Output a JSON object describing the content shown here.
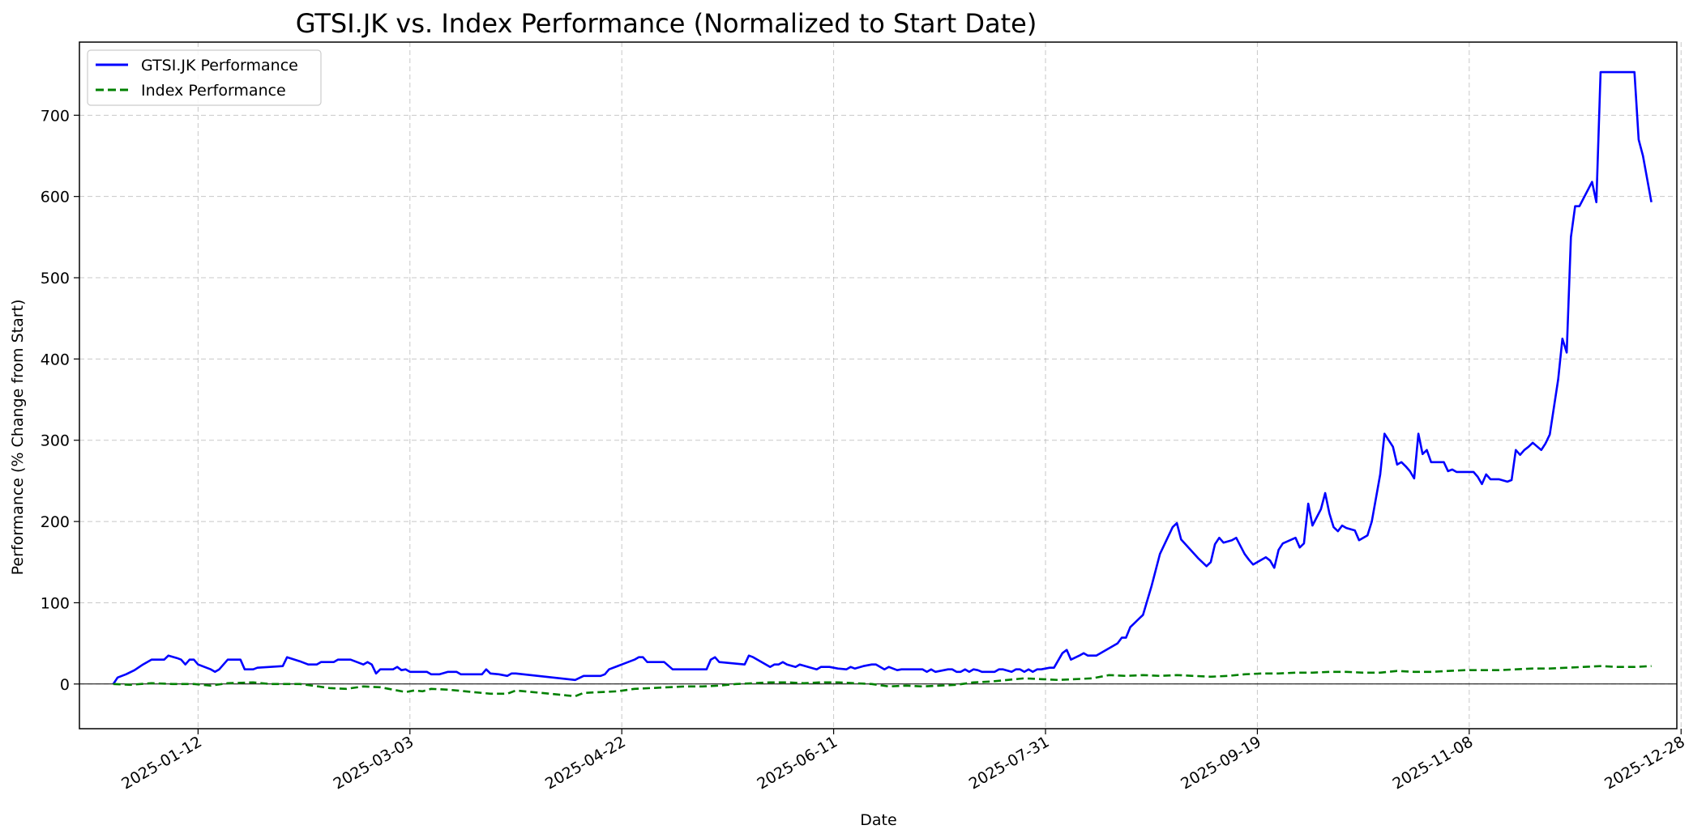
{
  "chart_data": {
    "type": "line",
    "title": "GTSI.JK vs. Index Performance (Normalized to Start Date)",
    "xlabel": "Date",
    "ylabel": "Performance (% Change from Start)",
    "xlim_days": [
      -17,
      360
    ],
    "ylim": [
      -55,
      790
    ],
    "x_ticks": [
      {
        "day": 11,
        "label": "2025-01-12"
      },
      {
        "day": 61,
        "label": "2025-03-03"
      },
      {
        "day": 111,
        "label": "2025-04-22"
      },
      {
        "day": 161,
        "label": "2025-06-11"
      },
      {
        "day": 211,
        "label": "2025-07-31"
      },
      {
        "day": 261,
        "label": "2025-09-19"
      },
      {
        "day": 311,
        "label": "2025-11-08"
      },
      {
        "day": 361,
        "label": "2025-12-28"
      }
    ],
    "y_ticks": [
      0,
      100,
      200,
      300,
      400,
      500,
      600,
      700
    ],
    "grid": true,
    "zero_line": true,
    "legend_position": "top-left",
    "series": [
      {
        "name": "GTSI.JK Performance",
        "color": "#0000ff",
        "style": "solid",
        "points": [
          [
            -9,
            0
          ],
          [
            -8,
            8
          ],
          [
            -6,
            12
          ],
          [
            -4,
            17
          ],
          [
            -2,
            24
          ],
          [
            0,
            30
          ],
          [
            3,
            30
          ],
          [
            4,
            35
          ],
          [
            6,
            32
          ],
          [
            7,
            30
          ],
          [
            8,
            24
          ],
          [
            9,
            30
          ],
          [
            10,
            30
          ],
          [
            11,
            24
          ],
          [
            13,
            20
          ],
          [
            14,
            18
          ],
          [
            15,
            15
          ],
          [
            16,
            18
          ],
          [
            18,
            30
          ],
          [
            21,
            30
          ],
          [
            22,
            18
          ],
          [
            24,
            18
          ],
          [
            25,
            20
          ],
          [
            31,
            22
          ],
          [
            32,
            33
          ],
          [
            35,
            28
          ],
          [
            37,
            24
          ],
          [
            39,
            24
          ],
          [
            40,
            27
          ],
          [
            43,
            27
          ],
          [
            44,
            30
          ],
          [
            47,
            30
          ],
          [
            50,
            24
          ],
          [
            51,
            27
          ],
          [
            52,
            24
          ],
          [
            53,
            13
          ],
          [
            54,
            18
          ],
          [
            57,
            18
          ],
          [
            58,
            21
          ],
          [
            59,
            17
          ],
          [
            60,
            18
          ],
          [
            61,
            15
          ],
          [
            64,
            15
          ],
          [
            65,
            15
          ],
          [
            66,
            12
          ],
          [
            68,
            12
          ],
          [
            70,
            15
          ],
          [
            72,
            15
          ],
          [
            73,
            12
          ],
          [
            78,
            12
          ],
          [
            79,
            18
          ],
          [
            80,
            13
          ],
          [
            82,
            12
          ],
          [
            84,
            10
          ],
          [
            85,
            13
          ],
          [
            86,
            13
          ],
          [
            100,
            5
          ],
          [
            102,
            10
          ],
          [
            106,
            10
          ],
          [
            107,
            12
          ],
          [
            108,
            18
          ],
          [
            111,
            24
          ],
          [
            114,
            30
          ],
          [
            115,
            33
          ],
          [
            116,
            33
          ],
          [
            117,
            27
          ],
          [
            121,
            27
          ],
          [
            123,
            18
          ],
          [
            131,
            18
          ],
          [
            132,
            30
          ],
          [
            133,
            33
          ],
          [
            134,
            27
          ],
          [
            140,
            24
          ],
          [
            141,
            35
          ],
          [
            142,
            33
          ],
          [
            145,
            24
          ],
          [
            146,
            21
          ],
          [
            147,
            24
          ],
          [
            148,
            24
          ],
          [
            149,
            27
          ],
          [
            150,
            24
          ],
          [
            152,
            21
          ],
          [
            153,
            24
          ],
          [
            155,
            21
          ],
          [
            157,
            18
          ],
          [
            158,
            21
          ],
          [
            160,
            21
          ],
          [
            162,
            19
          ],
          [
            164,
            18
          ],
          [
            165,
            21
          ],
          [
            166,
            19
          ],
          [
            168,
            22
          ],
          [
            170,
            24
          ],
          [
            171,
            24
          ],
          [
            173,
            18
          ],
          [
            174,
            21
          ],
          [
            175,
            19
          ],
          [
            176,
            17
          ],
          [
            177,
            18
          ],
          [
            181,
            18
          ],
          [
            182,
            18
          ],
          [
            183,
            15
          ],
          [
            184,
            18
          ],
          [
            185,
            15
          ],
          [
            188,
            18
          ],
          [
            189,
            18
          ],
          [
            190,
            15
          ],
          [
            191,
            15
          ],
          [
            192,
            18
          ],
          [
            193,
            15
          ],
          [
            194,
            18
          ],
          [
            195,
            17
          ],
          [
            196,
            15
          ],
          [
            199,
            15
          ],
          [
            200,
            18
          ],
          [
            201,
            18
          ],
          [
            203,
            15
          ],
          [
            204,
            18
          ],
          [
            205,
            18
          ],
          [
            206,
            15
          ],
          [
            207,
            18
          ],
          [
            208,
            15
          ],
          [
            209,
            18
          ],
          [
            210,
            18
          ],
          [
            212,
            20
          ],
          [
            213,
            20
          ],
          [
            215,
            38
          ],
          [
            216,
            42
          ],
          [
            217,
            30
          ],
          [
            219,
            35
          ],
          [
            220,
            38
          ],
          [
            221,
            35
          ],
          [
            223,
            35
          ],
          [
            228,
            50
          ],
          [
            229,
            57
          ],
          [
            230,
            57
          ],
          [
            231,
            70
          ],
          [
            233,
            80
          ],
          [
            234,
            85
          ],
          [
            236,
            120
          ],
          [
            238,
            160
          ],
          [
            241,
            193
          ],
          [
            242,
            198
          ],
          [
            243,
            178
          ],
          [
            247,
            155
          ],
          [
            249,
            145
          ],
          [
            250,
            150
          ],
          [
            251,
            172
          ],
          [
            252,
            180
          ],
          [
            253,
            174
          ],
          [
            255,
            177
          ],
          [
            256,
            180
          ],
          [
            258,
            160
          ],
          [
            259,
            153
          ],
          [
            260,
            147
          ],
          [
            263,
            156
          ],
          [
            264,
            152
          ],
          [
            265,
            143
          ],
          [
            266,
            165
          ],
          [
            267,
            173
          ],
          [
            270,
            180
          ],
          [
            271,
            168
          ],
          [
            272,
            173
          ],
          [
            273,
            222
          ],
          [
            274,
            195
          ],
          [
            276,
            215
          ],
          [
            277,
            235
          ],
          [
            278,
            210
          ],
          [
            279,
            193
          ],
          [
            280,
            188
          ],
          [
            281,
            195
          ],
          [
            282,
            192
          ],
          [
            284,
            189
          ],
          [
            285,
            177
          ],
          [
            287,
            183
          ],
          [
            288,
            200
          ],
          [
            290,
            258
          ],
          [
            291,
            308
          ],
          [
            293,
            292
          ],
          [
            294,
            270
          ],
          [
            295,
            273
          ],
          [
            296,
            268
          ],
          [
            297,
            262
          ],
          [
            298,
            253
          ],
          [
            299,
            308
          ],
          [
            300,
            283
          ],
          [
            301,
            288
          ],
          [
            302,
            273
          ],
          [
            305,
            273
          ],
          [
            306,
            262
          ],
          [
            307,
            264
          ],
          [
            308,
            261
          ],
          [
            312,
            261
          ],
          [
            313,
            255
          ],
          [
            314,
            246
          ],
          [
            315,
            258
          ],
          [
            316,
            252
          ],
          [
            318,
            252
          ],
          [
            320,
            249
          ],
          [
            321,
            251
          ],
          [
            322,
            288
          ],
          [
            323,
            282
          ],
          [
            324,
            288
          ],
          [
            325,
            292
          ],
          [
            326,
            297
          ],
          [
            328,
            288
          ],
          [
            329,
            296
          ],
          [
            330,
            307
          ],
          [
            332,
            375
          ],
          [
            333,
            425
          ],
          [
            334,
            408
          ],
          [
            335,
            550
          ],
          [
            336,
            588
          ],
          [
            337,
            588
          ],
          [
            340,
            618
          ],
          [
            341,
            593
          ],
          [
            342,
            753
          ],
          [
            350,
            753
          ],
          [
            351,
            670
          ],
          [
            352,
            650
          ],
          [
            354,
            593
          ]
        ]
      },
      {
        "name": "Index Performance",
        "color": "#008000",
        "style": "dashed",
        "points": [
          [
            -9,
            0
          ],
          [
            -5,
            -1
          ],
          [
            0,
            1
          ],
          [
            5,
            0
          ],
          [
            10,
            0
          ],
          [
            14,
            -2
          ],
          [
            18,
            1
          ],
          [
            24,
            2
          ],
          [
            28,
            0
          ],
          [
            35,
            0
          ],
          [
            38,
            -2
          ],
          [
            42,
            -5
          ],
          [
            46,
            -6
          ],
          [
            50,
            -3
          ],
          [
            54,
            -4
          ],
          [
            56,
            -6
          ],
          [
            60,
            -10
          ],
          [
            62,
            -8
          ],
          [
            64,
            -9
          ],
          [
            66,
            -6
          ],
          [
            70,
            -7
          ],
          [
            74,
            -9
          ],
          [
            78,
            -11
          ],
          [
            80,
            -12
          ],
          [
            84,
            -12
          ],
          [
            86,
            -8
          ],
          [
            90,
            -10
          ],
          [
            94,
            -12
          ],
          [
            98,
            -14
          ],
          [
            100,
            -15
          ],
          [
            102,
            -11
          ],
          [
            106,
            -10
          ],
          [
            110,
            -9
          ],
          [
            114,
            -6
          ],
          [
            118,
            -5
          ],
          [
            122,
            -4
          ],
          [
            126,
            -3
          ],
          [
            130,
            -3
          ],
          [
            134,
            -2
          ],
          [
            138,
            0
          ],
          [
            142,
            1
          ],
          [
            146,
            2
          ],
          [
            150,
            2
          ],
          [
            154,
            1
          ],
          [
            158,
            2
          ],
          [
            162,
            2
          ],
          [
            166,
            1
          ],
          [
            170,
            0
          ],
          [
            174,
            -3
          ],
          [
            178,
            -2
          ],
          [
            182,
            -3
          ],
          [
            186,
            -2
          ],
          [
            190,
            -1
          ],
          [
            194,
            2
          ],
          [
            198,
            3
          ],
          [
            202,
            5
          ],
          [
            206,
            7
          ],
          [
            210,
            6
          ],
          [
            214,
            5
          ],
          [
            218,
            6
          ],
          [
            222,
            7
          ],
          [
            226,
            11
          ],
          [
            230,
            10
          ],
          [
            234,
            11
          ],
          [
            238,
            10
          ],
          [
            242,
            11
          ],
          [
            246,
            10
          ],
          [
            250,
            9
          ],
          [
            254,
            10
          ],
          [
            258,
            12
          ],
          [
            262,
            13
          ],
          [
            266,
            13
          ],
          [
            270,
            14
          ],
          [
            274,
            14
          ],
          [
            278,
            15
          ],
          [
            282,
            15
          ],
          [
            286,
            14
          ],
          [
            290,
            14
          ],
          [
            294,
            16
          ],
          [
            298,
            15
          ],
          [
            302,
            15
          ],
          [
            306,
            16
          ],
          [
            310,
            17
          ],
          [
            314,
            17
          ],
          [
            318,
            17
          ],
          [
            322,
            18
          ],
          [
            326,
            19
          ],
          [
            330,
            19
          ],
          [
            334,
            20
          ],
          [
            338,
            21
          ],
          [
            342,
            22
          ],
          [
            346,
            21
          ],
          [
            350,
            21
          ],
          [
            354,
            22
          ]
        ]
      }
    ]
  }
}
